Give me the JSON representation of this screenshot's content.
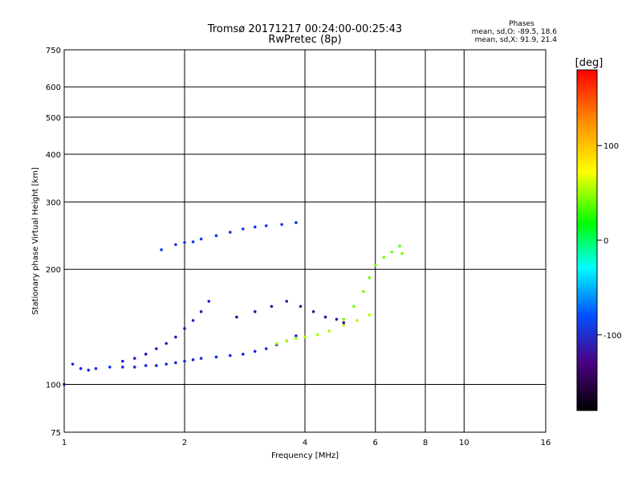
{
  "chart_data": {
    "type": "scatter",
    "title": "Tromsø 20171217 00:24:00-00:25:43",
    "subtitle": "RwPretec (8p)",
    "xlabel": "Frequency [MHz]",
    "ylabel": "Stationary phase Virtual Height [km]",
    "x_scale": "log",
    "y_scale": "log",
    "xlim": [
      1,
      16
    ],
    "ylim": [
      75,
      750
    ],
    "x_ticks": [
      1,
      2,
      4,
      6,
      8,
      10,
      16
    ],
    "x_tick_labels": [
      "1",
      "2",
      "4",
      "6",
      "8",
      "10",
      "16"
    ],
    "y_ticks": [
      75,
      100,
      200,
      300,
      400,
      500,
      600,
      750
    ],
    "y_tick_labels": [
      "75",
      "100",
      "200",
      "300",
      "400",
      "500",
      "600",
      "750"
    ],
    "grid": true,
    "phases": {
      "title": "Phases",
      "line_o": "mean, sd,O: -89.5, 18.6",
      "line_x": "mean, sd,X:  91.9, 21.4"
    },
    "colorbar": {
      "label": "[deg]",
      "range": [
        -180,
        180
      ],
      "ticks": [
        100,
        0,
        -100
      ],
      "tick_labels": [
        "100",
        "0",
        "-100"
      ]
    },
    "traces": [
      {
        "name": "",
        "phase": -110,
        "x": [
          1.0,
          1.05,
          1.1,
          1.15,
          1.2,
          1.3,
          1.4,
          1.5,
          1.6,
          1.7,
          1.8,
          1.9,
          2.0,
          2.1,
          2.2,
          2.4,
          2.6,
          2.8,
          3.0,
          3.2,
          3.4,
          3.6,
          3.8
        ],
        "y": [
          100,
          113,
          110,
          109,
          110,
          111,
          111,
          111,
          112,
          112,
          113,
          114,
          115,
          116,
          117,
          118,
          119,
          120,
          122,
          124,
          127,
          130,
          134
        ]
      },
      {
        "name": "",
        "phase": -120,
        "x": [
          1.4,
          1.5,
          1.6,
          1.7,
          1.8,
          1.9,
          2.0,
          2.1,
          2.2,
          2.3
        ],
        "y": [
          115,
          117,
          120,
          124,
          128,
          133,
          140,
          147,
          155,
          165
        ]
      },
      {
        "name": "",
        "phase": 80,
        "x": [
          3.4,
          3.6,
          3.8,
          4.0,
          4.3,
          4.6,
          5.0,
          5.4,
          5.8
        ],
        "y": [
          128,
          130,
          132,
          133,
          135,
          138,
          143,
          147,
          152
        ]
      },
      {
        "name": "",
        "phase": 65,
        "x": [
          5.0,
          5.3,
          5.6,
          5.8,
          6.0,
          6.3,
          6.6,
          6.9,
          7.0
        ],
        "y": [
          148,
          160,
          175,
          190,
          205,
          215,
          222,
          230,
          220
        ]
      },
      {
        "name": "",
        "phase": -95,
        "x": [
          1.75,
          1.9,
          2.0,
          2.1,
          2.2,
          2.4,
          2.6,
          2.8,
          3.0,
          3.2,
          3.5,
          3.8
        ],
        "y": [
          225,
          232,
          235,
          236,
          240,
          245,
          250,
          255,
          258,
          260,
          262,
          265
        ]
      },
      {
        "name": "",
        "phase": -135,
        "x": [
          2.7,
          3.0,
          3.3,
          3.6,
          3.9,
          4.2,
          4.5,
          4.8,
          5.0
        ],
        "y": [
          150,
          155,
          160,
          165,
          160,
          155,
          150,
          148,
          145
        ]
      }
    ]
  }
}
